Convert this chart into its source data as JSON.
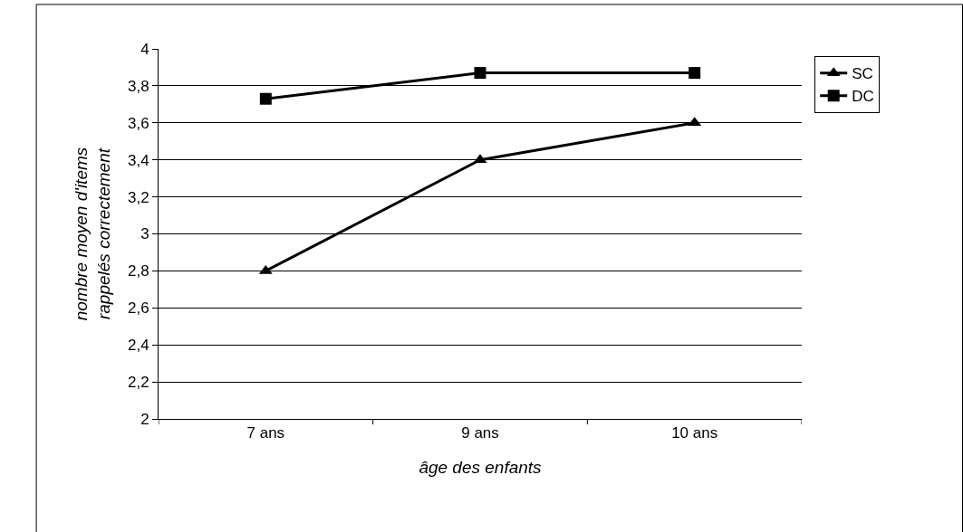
{
  "chart_data": {
    "type": "line",
    "xlabel": "âge des enfants",
    "ylabel": "nombre moyen d'items\nrappelés correctement",
    "categories": [
      "7 ans",
      "9 ans",
      "10 ans"
    ],
    "series": [
      {
        "name": "SC",
        "color": "#000000",
        "marker": "triangle",
        "values": [
          2.8,
          3.4,
          3.6
        ]
      },
      {
        "name": "DC",
        "color": "#000000",
        "marker": "square",
        "values": [
          3.73,
          3.87,
          3.87
        ]
      }
    ],
    "ylim": [
      2,
      4
    ],
    "yticks": [
      {
        "value": 2,
        "label": "2"
      },
      {
        "value": 2.2,
        "label": "2,2"
      },
      {
        "value": 2.4,
        "label": "2,4"
      },
      {
        "value": 2.6,
        "label": "2,6"
      },
      {
        "value": 2.8,
        "label": "2,8"
      },
      {
        "value": 3,
        "label": "3"
      },
      {
        "value": 3.2,
        "label": "3,2"
      },
      {
        "value": 3.4,
        "label": "3,4"
      },
      {
        "value": 3.6,
        "label": "3,6"
      },
      {
        "value": 3.8,
        "label": "3,8"
      },
      {
        "value": 4,
        "label": "4"
      }
    ],
    "grid": "y",
    "legend": "top right",
    "line_style": "solid"
  }
}
